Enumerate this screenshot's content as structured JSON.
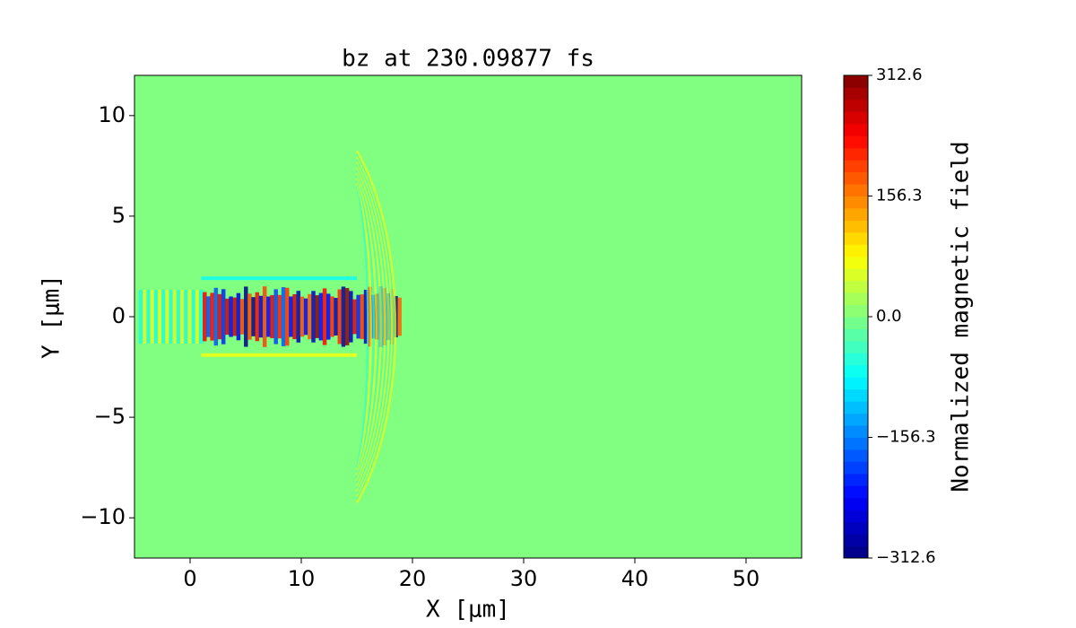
{
  "chart_data": {
    "type": "heatmap",
    "title": "bz at 230.09877 fs",
    "x_label": "X [μm]",
    "y_label": "Y [μm]",
    "xlim": [
      -5,
      55
    ],
    "ylim": [
      -12,
      12
    ],
    "xticks": [
      0,
      10,
      20,
      30,
      40,
      50
    ],
    "yticks": [
      {
        "value": -10,
        "label": "−10"
      },
      {
        "value": -5,
        "label": "−5"
      },
      0,
      5,
      10
    ],
    "colormap": "jet",
    "colorbar": {
      "label": "Normalized magnetic field",
      "clim": [
        -312.6,
        312.6
      ],
      "ticks": [
        {
          "value": -312.6,
          "label": "−312.6"
        },
        {
          "value": -156.3,
          "label": "−156.3"
        },
        {
          "value": 0,
          "label": "0.0"
        },
        156.3,
        312.6
      ]
    }
  }
}
